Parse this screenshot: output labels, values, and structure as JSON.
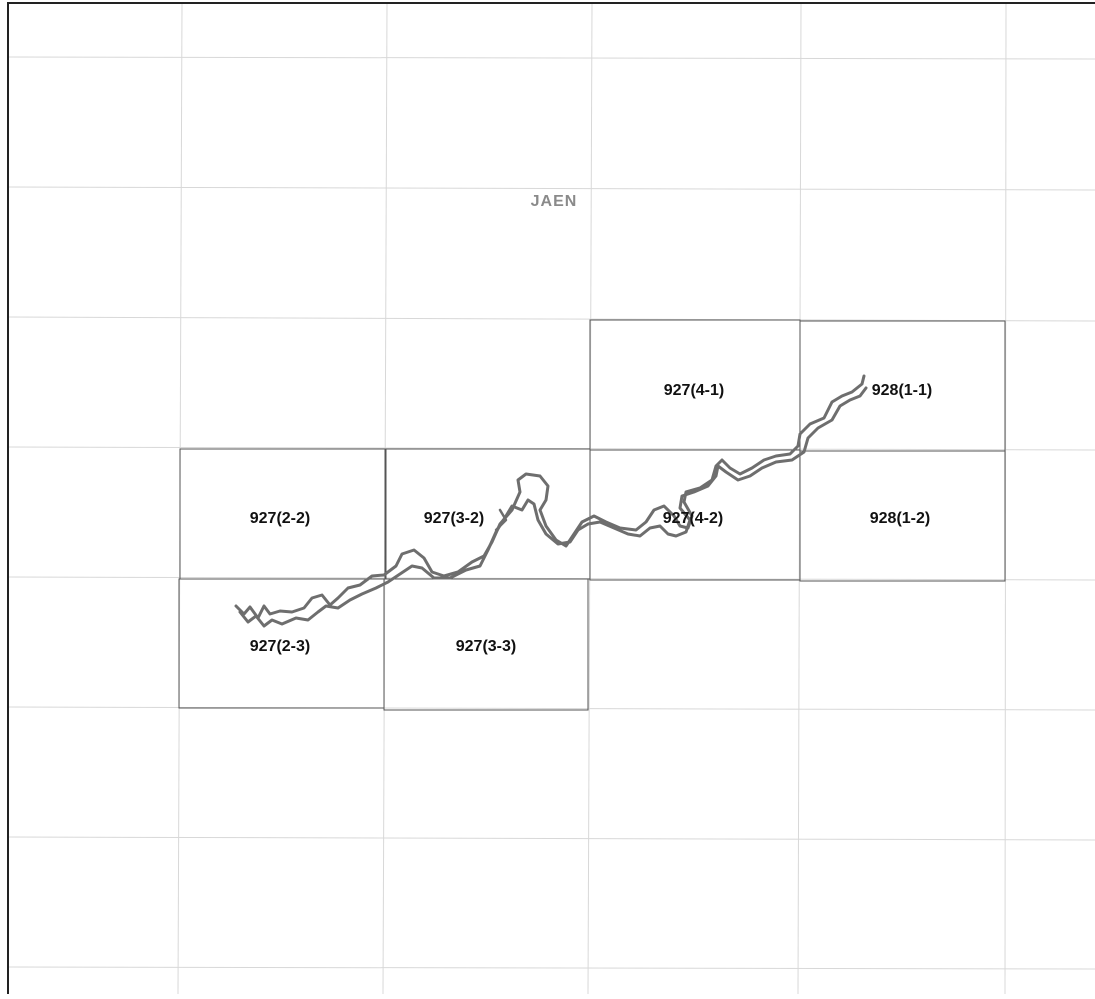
{
  "map": {
    "region_label": "JAEN",
    "colors": {
      "background": "#ffffff",
      "frame": "#222222",
      "grid": "#d8d8d8",
      "sheet_border": "#555555",
      "river": "#6e6e6e",
      "sheet_label": "#111111",
      "region_label": "#8a8a8a"
    },
    "sheets": [
      {
        "id": "927(4-1)",
        "label": "927(4-1)"
      },
      {
        "id": "928(1-1)",
        "label": "928(1-1)"
      },
      {
        "id": "927(2-2)",
        "label": "927(2-2)"
      },
      {
        "id": "927(3-2)",
        "label": "927(3-2)"
      },
      {
        "id": "927(4-2)",
        "label": "927(4-2)"
      },
      {
        "id": "928(1-2)",
        "label": "928(1-2)"
      },
      {
        "id": "927(2-3)",
        "label": "927(2-3)"
      },
      {
        "id": "927(3-3)",
        "label": "927(3-3)"
      }
    ]
  }
}
